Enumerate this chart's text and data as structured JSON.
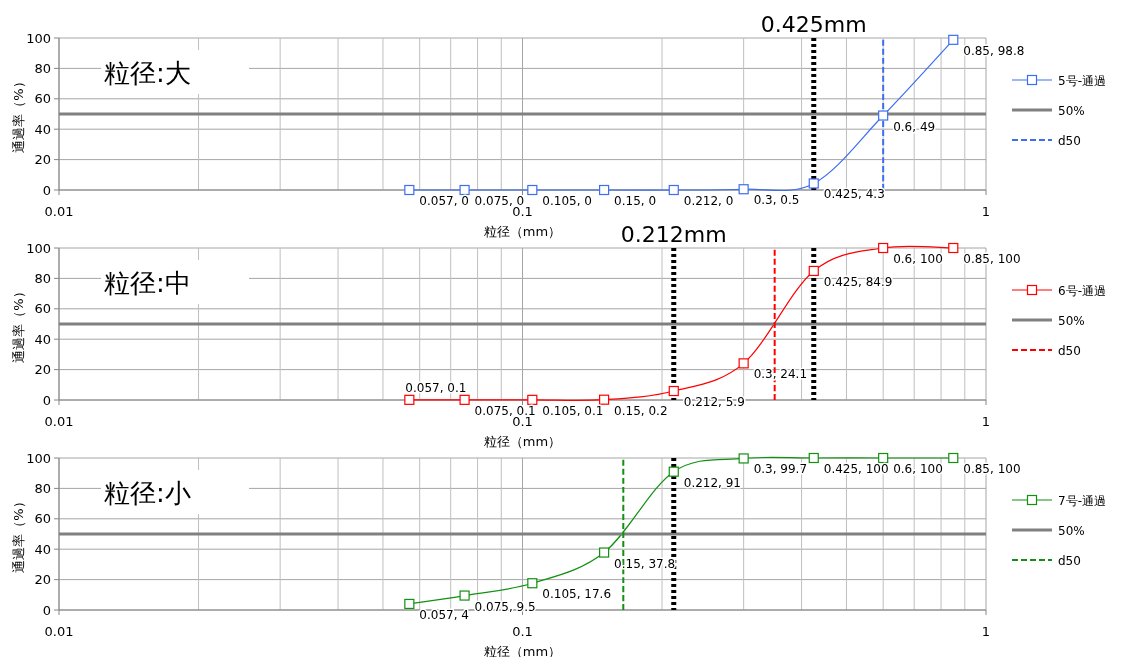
{
  "chart_data": [
    {
      "type": "line",
      "x": [
        0.057,
        0.075,
        0.105,
        0.15,
        0.212,
        0.3,
        0.425,
        0.6,
        0.85
      ],
      "xlabel": "粒径（mm）",
      "ylabel": "通過率（%）",
      "log": "x",
      "xlim": [
        0.01,
        1
      ],
      "xticks": [
        0.01,
        0.1,
        1
      ],
      "ylim": [
        0,
        100
      ],
      "yticks": [
        0,
        20,
        40,
        60,
        80,
        100
      ],
      "grid": true,
      "legend": "right",
      "marker": "square",
      "line_style": "solid",
      "series": [
        {
          "name": "5号-通過",
          "color": "#3d6ef0",
          "values": [
            0,
            0,
            0,
            0,
            0,
            0.5,
            4.3,
            49,
            98.8
          ],
          "value_labels": [
            "0.057, 0",
            "0.075, 0",
            "0.105, 0",
            "0.15, 0",
            "0.212, 0",
            "0.3, 0.5",
            "0.425, 4.3",
            "0.6, 49",
            "0.85, 98.8"
          ]
        },
        {
          "name": "50%",
          "color": "#808080",
          "x": [
            0.01,
            1
          ],
          "values": [
            50,
            50
          ],
          "marker": "none"
        },
        {
          "name": "d50",
          "color": "#3d6ef0",
          "x": [
            0.6,
            0.6
          ],
          "values": [
            0,
            100
          ],
          "marker": "none",
          "line_style": "dashed"
        }
      ],
      "ref_lines": [
        {
          "axis": "x",
          "value": 0.425,
          "color": "#000000",
          "line_style": "dotted"
        }
      ],
      "annotations": [
        "粒径:大",
        "0.425mm"
      ]
    },
    {
      "type": "line",
      "x": [
        0.057,
        0.075,
        0.105,
        0.15,
        0.212,
        0.3,
        0.425,
        0.6,
        0.85
      ],
      "xlabel": "粒径（mm）",
      "ylabel": "通過率（%）",
      "log": "x",
      "xlim": [
        0.01,
        1
      ],
      "xticks": [
        0.01,
        0.1,
        1
      ],
      "ylim": [
        0,
        100
      ],
      "yticks": [
        0,
        20,
        40,
        60,
        80,
        100
      ],
      "grid": true,
      "legend": "right",
      "marker": "square",
      "line_style": "solid",
      "series": [
        {
          "name": "6号-通過",
          "color": "#ff0000",
          "values": [
            0.1,
            0.1,
            0.1,
            0.2,
            5.9,
            24.1,
            84.9,
            100,
            100
          ],
          "value_labels": [
            "0.057, 0.1",
            "0.075, 0.1",
            "0.105, 0.1",
            "0.15, 0.2",
            "0.212, 5.9",
            "0.3, 24.1",
            "0.425, 84.9",
            "0.6, 100",
            "0.85, 100"
          ]
        },
        {
          "name": "50%",
          "color": "#808080",
          "x": [
            0.01,
            1
          ],
          "values": [
            50,
            50
          ],
          "marker": "none"
        },
        {
          "name": "d50",
          "color": "#ff0000",
          "x": [
            0.35,
            0.35
          ],
          "values": [
            0,
            100
          ],
          "marker": "none",
          "line_style": "dashed"
        }
      ],
      "ref_lines": [
        {
          "axis": "x",
          "value": 0.425,
          "color": "#000000",
          "line_style": "dotted"
        },
        {
          "axis": "x",
          "value": 0.212,
          "color": "#000000",
          "line_style": "dotted"
        }
      ],
      "annotations": [
        "粒径:中",
        "0.212mm"
      ]
    },
    {
      "type": "line",
      "x": [
        0.057,
        0.075,
        0.105,
        0.15,
        0.212,
        0.3,
        0.425,
        0.6,
        0.85
      ],
      "xlabel": "粒径（mm）",
      "ylabel": "通過率（%）",
      "log": "x",
      "xlim": [
        0.01,
        1
      ],
      "xticks": [
        0.01,
        0.1,
        1
      ],
      "ylim": [
        0,
        100
      ],
      "yticks": [
        0,
        20,
        40,
        60,
        80,
        100
      ],
      "grid": true,
      "legend": "right",
      "marker": "square",
      "line_style": "solid",
      "series": [
        {
          "name": "7号-通過",
          "color": "#119011",
          "values": [
            4,
            9.5,
            17.6,
            37.8,
            91,
            99.7,
            100,
            100,
            100
          ],
          "value_labels": [
            "0.057, 4",
            "0.075, 9.5",
            "0.105, 17.6",
            "0.15, 37.8",
            "0.212, 91",
            "0.3, 99.7",
            "0.425, 100",
            "0.6, 100",
            "0.85, 100"
          ]
        },
        {
          "name": "50%",
          "color": "#808080",
          "x": [
            0.01,
            1
          ],
          "values": [
            50,
            50
          ],
          "marker": "none"
        },
        {
          "name": "d50",
          "color": "#119011",
          "x": [
            0.165,
            0.165
          ],
          "values": [
            0,
            100
          ],
          "marker": "none",
          "line_style": "dashed"
        }
      ],
      "ref_lines": [
        {
          "axis": "x",
          "value": 0.212,
          "color": "#000000",
          "line_style": "dotted"
        }
      ],
      "annotations": [
        "粒径:小"
      ]
    }
  ]
}
